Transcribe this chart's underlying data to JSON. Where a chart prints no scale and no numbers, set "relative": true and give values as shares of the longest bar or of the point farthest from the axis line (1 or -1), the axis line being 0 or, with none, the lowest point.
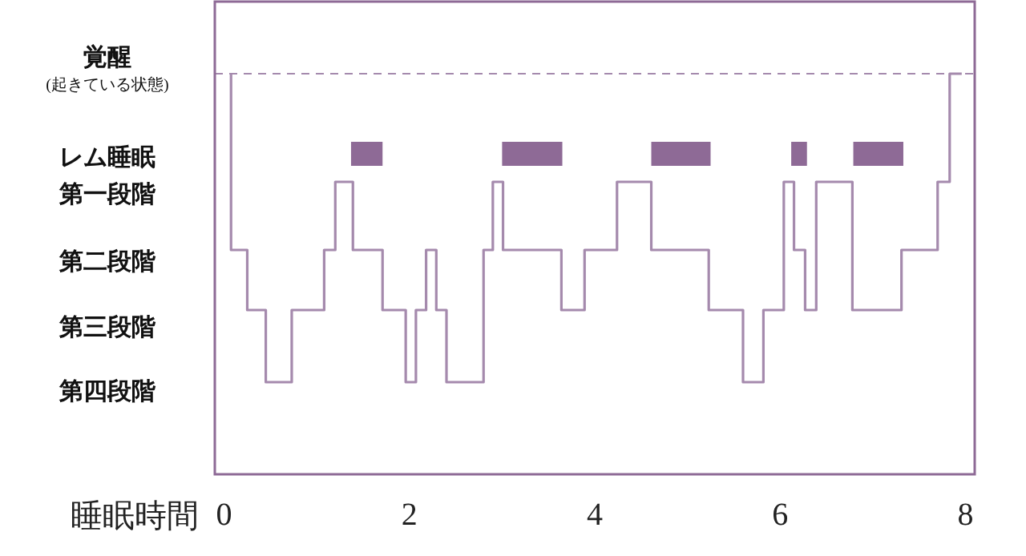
{
  "chart_data": {
    "type": "step",
    "xlabel": "睡眠時間",
    "relative": true,
    "xlim": [
      -0.1,
      8.1
    ],
    "xticks": [
      0,
      2,
      4,
      6,
      8
    ],
    "grid": false,
    "legend": false,
    "marker": "none",
    "annotations": [
      "覚醒\n(起きている状態)",
      "レム睡眠",
      "第一段階",
      "第二段階",
      "第三段階",
      "第四段階"
    ],
    "ref_lines": [
      {
        "axis": "y",
        "value": 1,
        "color": "#a58aad",
        "line_style": "dashed"
      }
    ],
    "series": [
      {
        "color": "#a58aad",
        "x": [
          0.075,
          0.075,
          0.25,
          0.45,
          0.73,
          1.08,
          1.2,
          1.39,
          1.71,
          1.96,
          2.07,
          2.18,
          2.29,
          2.4,
          2.8,
          2.9,
          3.01,
          3.64,
          3.89,
          4.24,
          4.61,
          5.23,
          5.6,
          5.82,
          6.04,
          6.15,
          6.27,
          6.39,
          6.78,
          7.31,
          7.7,
          7.83,
          7.96
        ],
        "values": [
          1,
          0.73,
          0.56,
          0.41,
          0.23,
          0.41,
          0.56,
          0.73,
          0.56,
          0.41,
          0.23,
          0.41,
          0.56,
          0.41,
          0.23,
          0.56,
          0.73,
          0.56,
          0.41,
          0.56,
          0.73,
          0.56,
          0.41,
          0.23,
          0.41,
          0.73,
          0.56,
          0.41,
          0.73,
          0.41,
          0.56,
          0.73,
          1
        ]
      },
      {
        "type": "line",
        "color": "#8e6a96",
        "x": [
          1.37,
          1.71
        ],
        "values": [
          0.8,
          0.8
        ]
      },
      {
        "type": "line",
        "color": "#8e6a96",
        "x": [
          3.0,
          3.65
        ],
        "values": [
          0.8,
          0.8
        ]
      },
      {
        "type": "line",
        "color": "#8e6a96",
        "x": [
          4.61,
          5.25
        ],
        "values": [
          0.8,
          0.8
        ]
      },
      {
        "type": "line",
        "color": "#8e6a96",
        "x": [
          6.12,
          6.29
        ],
        "values": [
          0.8,
          0.8
        ]
      },
      {
        "type": "line",
        "color": "#8e6a96",
        "x": [
          6.79,
          7.33
        ],
        "values": [
          0.8,
          0.8
        ]
      }
    ]
  }
}
